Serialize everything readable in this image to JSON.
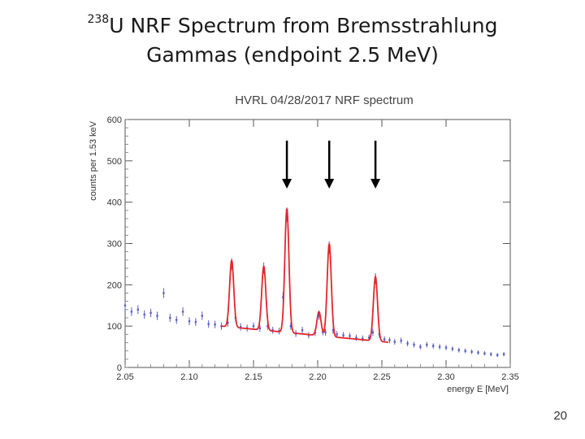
{
  "slide": {
    "title_sup": "238",
    "title_line1_rest": "U NRF Spectrum from Bremsstrahlung",
    "title_line2": "Gammas (endpoint 2.5 MeV)",
    "page_number": "20"
  },
  "colors": {
    "data_points": "#5b5fc7",
    "fit_line": "#e3262b",
    "arrows": "#000000"
  },
  "chart_data": {
    "type": "line",
    "title": "HVRL 04/28/2017 NRF spectrum",
    "xlabel": "energy E [MeV]",
    "ylabel": "counts per 1.53 keV",
    "xlim": [
      2.05,
      2.35
    ],
    "ylim": [
      0,
      600
    ],
    "x_ticks": [
      "2.05",
      "2.10",
      "2.15",
      "2.20",
      "2.25",
      "2.30",
      "2.35"
    ],
    "y_ticks": [
      "0",
      "100",
      "200",
      "300",
      "400",
      "500",
      "600"
    ],
    "grid": false,
    "peaks": [
      {
        "energy": 2.133,
        "counts": 260
      },
      {
        "energy": 2.158,
        "counts": 245
      },
      {
        "energy": 2.176,
        "counts": 385
      },
      {
        "energy": 2.201,
        "counts": 135
      },
      {
        "energy": 2.209,
        "counts": 300
      },
      {
        "energy": 2.245,
        "counts": 220
      }
    ],
    "arrow_energies": [
      2.176,
      2.209,
      2.245
    ],
    "fit_range": [
      2.125,
      2.255
    ],
    "series": [
      {
        "name": "data",
        "style": "points",
        "x": [
          2.05,
          2.055,
          2.06,
          2.065,
          2.07,
          2.075,
          2.08,
          2.085,
          2.09,
          2.095,
          2.1,
          2.105,
          2.11,
          2.115,
          2.12,
          2.125,
          2.13,
          2.133,
          2.136,
          2.14,
          2.145,
          2.15,
          2.155,
          2.158,
          2.161,
          2.165,
          2.17,
          2.173,
          2.176,
          2.179,
          2.183,
          2.188,
          2.193,
          2.198,
          2.201,
          2.204,
          2.206,
          2.209,
          2.212,
          2.215,
          2.22,
          2.225,
          2.23,
          2.235,
          2.24,
          2.243,
          2.245,
          2.248,
          2.252,
          2.256,
          2.26,
          2.265,
          2.27,
          2.275,
          2.28,
          2.285,
          2.29,
          2.295,
          2.3,
          2.305,
          2.31,
          2.315,
          2.32,
          2.325,
          2.33,
          2.335,
          2.34,
          2.345
        ],
        "y": [
          150,
          135,
          140,
          128,
          132,
          125,
          180,
          120,
          115,
          135,
          112,
          110,
          125,
          105,
          104,
          100,
          108,
          250,
          120,
          98,
          95,
          100,
          95,
          240,
          100,
          90,
          88,
          170,
          370,
          100,
          82,
          90,
          78,
          84,
          125,
          86,
          85,
          290,
          90,
          80,
          78,
          76,
          72,
          70,
          72,
          85,
          215,
          80,
          68,
          66,
          62,
          65,
          58,
          55,
          50,
          55,
          52,
          50,
          48,
          45,
          42,
          40,
          38,
          36,
          34,
          32,
          30,
          32
        ]
      },
      {
        "name": "fit",
        "style": "line"
      }
    ]
  }
}
